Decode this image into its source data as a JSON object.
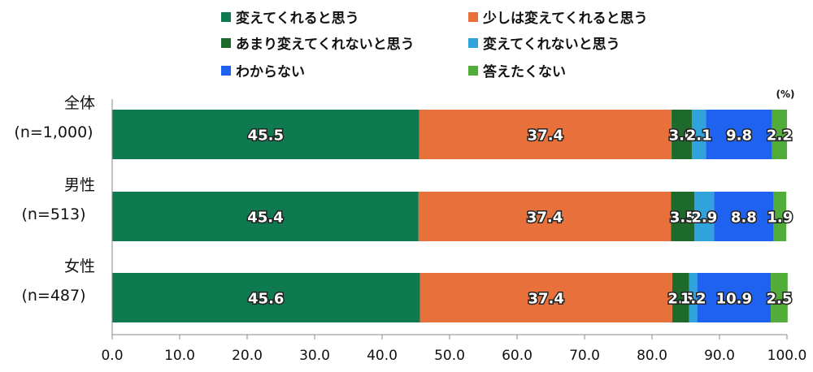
{
  "chart_data": {
    "type": "bar",
    "orientation": "horizontal",
    "stacked": true,
    "unit": "(%)",
    "categories": [
      {
        "label": "全体",
        "n": "(n=1,000)"
      },
      {
        "label": "男性",
        "n": "(n=513)"
      },
      {
        "label": "女性",
        "n": "(n=487)"
      }
    ],
    "series": [
      {
        "name": "変えてくれると思う",
        "color": "#0f7a4f",
        "values": [
          45.5,
          45.4,
          45.6
        ]
      },
      {
        "name": "少しは変えてくれると思う",
        "color": "#e8713b",
        "values": [
          37.4,
          37.4,
          37.4
        ]
      },
      {
        "name": "あまり変えてくれないと思う",
        "color": "#1e6a2c",
        "values": [
          3.0,
          3.5,
          2.5
        ]
      },
      {
        "name": "変えてくれないと思う",
        "color": "#30a3dc",
        "values": [
          2.1,
          2.9,
          1.2
        ]
      },
      {
        "name": "わからない",
        "color": "#1f62f0",
        "values": [
          9.8,
          8.8,
          10.9
        ]
      },
      {
        "name": "答えたくない",
        "color": "#51ac3a",
        "values": [
          2.2,
          1.9,
          2.5
        ]
      }
    ],
    "data_labels": [
      [
        "45.5",
        "37.4",
        "3.0",
        "2.1",
        "9.8",
        "2.2"
      ],
      [
        "45.4",
        "37.4",
        "3.5",
        "2.9",
        "8.8",
        "1.9"
      ],
      [
        "45.6",
        "37.4",
        "2.5",
        "1.2",
        "10.9",
        "2.5"
      ]
    ],
    "xlim": [
      0,
      100
    ],
    "xticks": [
      "0.0",
      "10.0",
      "20.0",
      "30.0",
      "40.0",
      "50.0",
      "60.0",
      "70.0",
      "80.0",
      "90.0",
      "100.0"
    ],
    "legend_position": "top",
    "grid": false
  }
}
